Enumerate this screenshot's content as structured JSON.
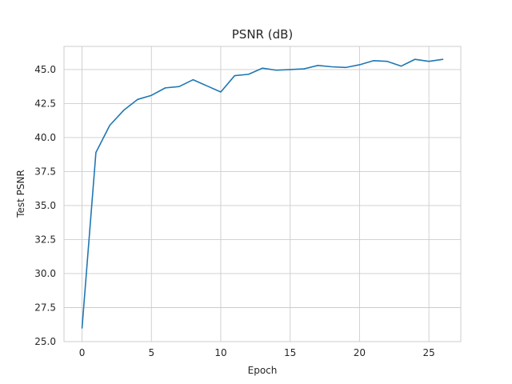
{
  "chart_data": {
    "type": "line",
    "title": "PSNR (dB)",
    "xlabel": "Epoch",
    "ylabel": "Test PSNR",
    "xlim": [
      -1.3,
      27.3
    ],
    "ylim": [
      25.0,
      46.7
    ],
    "xticks": [
      0,
      5,
      10,
      15,
      20,
      25
    ],
    "yticks": [
      25.0,
      27.5,
      30.0,
      32.5,
      35.0,
      37.5,
      40.0,
      42.5,
      45.0
    ],
    "grid": true,
    "series": [
      {
        "color": "#1f77b4",
        "x": [
          0,
          1,
          2,
          3,
          4,
          5,
          6,
          7,
          8,
          9,
          10,
          11,
          12,
          13,
          14,
          15,
          16,
          17,
          18,
          19,
          20,
          21,
          22,
          23,
          24,
          25,
          26
        ],
        "y": [
          26.0,
          38.9,
          40.9,
          42.0,
          42.8,
          43.1,
          43.65,
          43.75,
          44.25,
          43.8,
          43.35,
          44.55,
          44.65,
          45.1,
          44.95,
          45.0,
          45.05,
          45.3,
          45.2,
          45.15,
          45.35,
          45.65,
          45.6,
          45.25,
          45.75,
          45.6,
          45.75
        ]
      }
    ]
  }
}
